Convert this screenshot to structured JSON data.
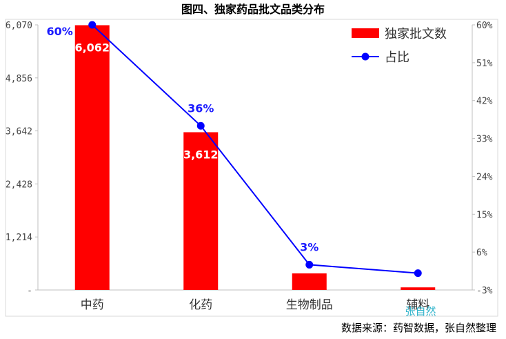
{
  "chart_data": {
    "type": "bar",
    "title": "图四、独家药品批文品类分布",
    "categories": [
      "中药",
      "化药",
      "生物制品",
      "辅料"
    ],
    "series": [
      {
        "name": "独家批文数",
        "kind": "bar",
        "axis": "left",
        "color": "#ff0000",
        "values": [
          6062,
          3612,
          380,
          60
        ],
        "data_labels": [
          "6,062",
          "3,612",
          "",
          ""
        ]
      },
      {
        "name": "占比",
        "kind": "line",
        "axis": "right",
        "color": "#0000ff",
        "values": [
          60,
          36,
          3,
          1
        ],
        "data_labels": [
          "60%",
          "36%",
          "3%",
          ""
        ]
      }
    ],
    "y_left": {
      "range": [
        0,
        6070
      ],
      "ticks": [
        0,
        1214,
        2428,
        3642,
        4856,
        6070
      ],
      "tick_labels": [
        "-",
        "1,214",
        "2,428",
        "3,642",
        "4,856",
        "6,070"
      ]
    },
    "y_right": {
      "range": [
        -3,
        60
      ],
      "ticks": [
        -3,
        6,
        15,
        24,
        33,
        42,
        51,
        60
      ],
      "tick_labels": [
        "-3%",
        "6%",
        "15%",
        "24%",
        "33%",
        "42%",
        "51%",
        "60%"
      ]
    },
    "legend": "top-right",
    "grid": false
  },
  "footer": {
    "source": "数据来源：药智数据，张自然整理",
    "watermark": "张自然"
  }
}
